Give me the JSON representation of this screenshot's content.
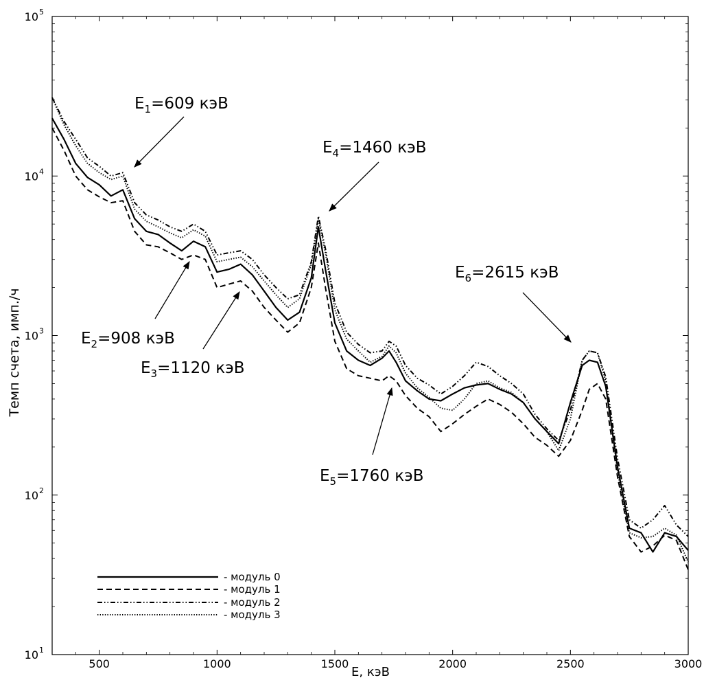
{
  "chart_data": {
    "type": "line",
    "xlabel": "E, кэВ",
    "ylabel": "Темп счета, имп./ч",
    "xlim": [
      300,
      3000
    ],
    "ylim": [
      10,
      100000
    ],
    "yscale": "log",
    "grid": false,
    "legend_position": "bottom-left",
    "x_ticks": [
      {
        "value": 500,
        "label": "500"
      },
      {
        "value": 1000,
        "label": "1000"
      },
      {
        "value": 1500,
        "label": "1500"
      },
      {
        "value": 2000,
        "label": "2000"
      },
      {
        "value": 2500,
        "label": "2500"
      },
      {
        "value": 3000,
        "label": "3000"
      }
    ],
    "y_ticks": [
      {
        "value": 10,
        "base": "10",
        "exp": "1"
      },
      {
        "value": 100,
        "base": "10",
        "exp": "2"
      },
      {
        "value": 1000,
        "base": "10",
        "exp": "3"
      },
      {
        "value": 10000,
        "base": "10",
        "exp": "4"
      },
      {
        "value": 100000,
        "base": "10",
        "exp": "5"
      }
    ],
    "x": [
      300,
      350,
      400,
      450,
      500,
      550,
      600,
      650,
      700,
      750,
      800,
      850,
      900,
      950,
      1000,
      1050,
      1100,
      1150,
      1200,
      1250,
      1300,
      1350,
      1400,
      1430,
      1460,
      1500,
      1550,
      1600,
      1650,
      1700,
      1730,
      1760,
      1800,
      1850,
      1900,
      1950,
      2000,
      2050,
      2100,
      2150,
      2200,
      2250,
      2300,
      2350,
      2400,
      2450,
      2500,
      2550,
      2580,
      2615,
      2650,
      2700,
      2750,
      2800,
      2850,
      2900,
      2950,
      3000
    ],
    "series": [
      {
        "name": "- модуль 0",
        "style": "solid",
        "values": [
          23000,
          17000,
          12000,
          9800,
          8800,
          7500,
          8200,
          5400,
          4500,
          4300,
          3800,
          3400,
          3900,
          3600,
          2500,
          2600,
          2800,
          2400,
          1900,
          1500,
          1250,
          1400,
          2300,
          4800,
          2600,
          1200,
          800,
          700,
          650,
          720,
          800,
          680,
          520,
          450,
          400,
          390,
          430,
          470,
          490,
          500,
          460,
          430,
          380,
          300,
          250,
          210,
          380,
          650,
          700,
          680,
          480,
          150,
          62,
          58,
          44,
          58,
          55,
          45
        ]
      },
      {
        "name": "- модуль 1",
        "style": "dashed",
        "values": [
          20000,
          14500,
          10000,
          8200,
          7400,
          6800,
          7000,
          4500,
          3700,
          3600,
          3300,
          3000,
          3200,
          3000,
          2000,
          2100,
          2200,
          1900,
          1500,
          1250,
          1050,
          1200,
          2000,
          3800,
          2000,
          920,
          620,
          560,
          540,
          520,
          560,
          520,
          420,
          350,
          310,
          250,
          280,
          320,
          360,
          400,
          370,
          330,
          280,
          230,
          205,
          175,
          220,
          340,
          460,
          500,
          400,
          130,
          55,
          44,
          48,
          56,
          52,
          34
        ]
      },
      {
        "name": "- модуль 2",
        "style": "dashdotdot",
        "values": [
          31000,
          22000,
          17000,
          13000,
          11500,
          10000,
          10500,
          6800,
          5700,
          5300,
          4800,
          4500,
          5000,
          4500,
          3200,
          3300,
          3400,
          3000,
          2400,
          2000,
          1700,
          1800,
          2900,
          5600,
          3500,
          1600,
          1050,
          880,
          780,
          800,
          920,
          860,
          650,
          540,
          490,
          430,
          480,
          560,
          680,
          640,
          560,
          500,
          430,
          320,
          260,
          220,
          340,
          700,
          800,
          780,
          550,
          170,
          70,
          62,
          70,
          86,
          65,
          55
        ]
      },
      {
        "name": "- модуль 3",
        "style": "dotted",
        "values": [
          31000,
          21000,
          15500,
          12000,
          10500,
          9500,
          10000,
          6200,
          5200,
          4800,
          4400,
          4100,
          4600,
          4200,
          2900,
          3000,
          3100,
          2700,
          2200,
          1800,
          1500,
          1700,
          2800,
          5400,
          3300,
          1450,
          950,
          800,
          680,
          740,
          860,
          780,
          580,
          470,
          410,
          350,
          340,
          400,
          500,
          520,
          470,
          440,
          380,
          300,
          250,
          190,
          300,
          700,
          800,
          780,
          520,
          140,
          58,
          54,
          55,
          62,
          56,
          38
        ]
      }
    ],
    "annotations": [
      {
        "base": "E",
        "sub": "1",
        "text": "=609 кэВ",
        "target_x": 609,
        "target_y": 10000
      },
      {
        "base": "E",
        "sub": "2",
        "text": "=908 кэВ",
        "target_x": 908,
        "target_y": 3200
      },
      {
        "base": "E",
        "sub": "3",
        "text": "=1120 кэВ",
        "target_x": 1120,
        "target_y": 2250
      },
      {
        "base": "E",
        "sub": "4",
        "text": "=1460 кэВ",
        "target_x": 1460,
        "target_y": 5600
      },
      {
        "base": "E",
        "sub": "5",
        "text": "=1760 кэВ",
        "target_x": 1760,
        "target_y": 520
      },
      {
        "base": "E",
        "sub": "6",
        "text": "=2615 кэВ",
        "target_x": 2615,
        "target_y": 810
      }
    ]
  }
}
